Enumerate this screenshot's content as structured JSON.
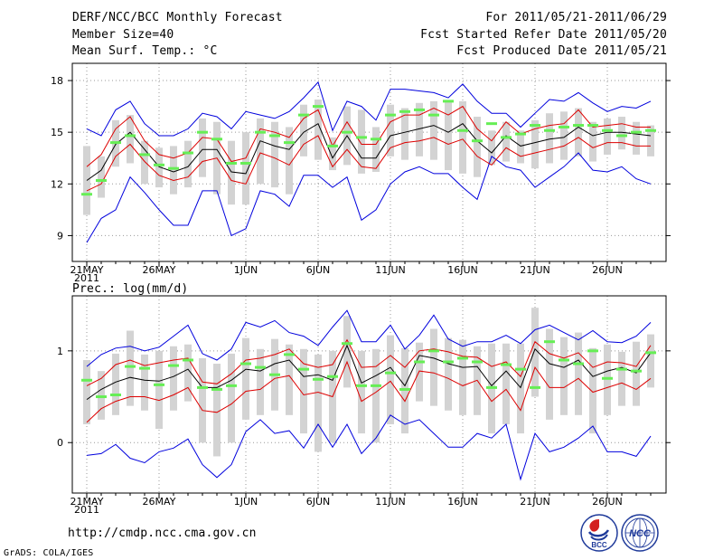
{
  "header": {
    "title_line1": "DERF/NCC/BCC Monthly Forecast",
    "title_line2": "Member Size=40",
    "title_line3": "Mean Surf. Temp.: °C",
    "right_line1": "For 2011/05/21-2011/06/29",
    "right_line2": "Fcst Started Refer Date 2011/05/20",
    "right_line3": "Fcst Produced Date 2011/05/21"
  },
  "footer": {
    "url": "http://cmdp.ncc.cma.gov.cn",
    "grads": "GrADS: COLA/IGES",
    "logo_bcc_text": "BCC",
    "logo_ncc_text": "NCC"
  },
  "colors": {
    "box": "#d3d3d3",
    "median": "#66ee55",
    "mean": "#000000",
    "std": "#dd0000",
    "extreme": "#0000dd",
    "grid": "#999999"
  },
  "chart_data": [
    {
      "type": "line",
      "panel": "temperature",
      "title": "Mean Surf. Temp.: °C",
      "ylim": [
        7.5,
        19
      ],
      "yticks": [
        9,
        12,
        15,
        18
      ],
      "ytick_labels": [
        "9",
        "12",
        "15",
        "18"
      ],
      "xtick_labels": [
        "21MAY\n2011",
        "26MAY",
        "1JUN",
        "6JUN",
        "11JUN",
        "16JUN",
        "21JUN",
        "26JUN"
      ],
      "xtick_days": [
        1,
        6,
        12,
        17,
        22,
        27,
        32,
        37
      ],
      "days": 40,
      "grid": true,
      "series": [
        {
          "name": "mean",
          "values": [
            12.2,
            12.8,
            14.3,
            15.0,
            14.0,
            13.0,
            12.7,
            13.0,
            14.0,
            14.0,
            12.7,
            12.6,
            14.5,
            14.2,
            14.0,
            15.0,
            15.5,
            13.5,
            14.8,
            13.5,
            13.5,
            14.8,
            15.0,
            15.2,
            15.4,
            15.0,
            15.5,
            14.5,
            13.8,
            14.8,
            14.2,
            14.4,
            14.6,
            14.7,
            15.3,
            14.8,
            15.0,
            15.0,
            14.9,
            14.8
          ]
        },
        {
          "name": "mean_plus_std",
          "values": [
            13.0,
            13.7,
            15.2,
            15.9,
            14.5,
            13.7,
            13.5,
            13.8,
            14.7,
            14.6,
            13.3,
            13.5,
            15.2,
            15.0,
            14.7,
            15.8,
            16.3,
            14.2,
            15.6,
            14.3,
            14.3,
            15.6,
            16.0,
            16.0,
            16.4,
            16.0,
            16.5,
            15.2,
            14.5,
            15.6,
            14.9,
            15.2,
            15.4,
            15.5,
            16.3,
            15.3,
            15.4,
            15.5,
            15.3,
            15.3
          ]
        },
        {
          "name": "mean_minus_std",
          "values": [
            11.6,
            12.0,
            13.6,
            14.3,
            13.3,
            12.5,
            12.2,
            12.4,
            13.3,
            13.5,
            12.2,
            12.0,
            13.8,
            13.5,
            13.1,
            14.3,
            14.8,
            13.0,
            14.0,
            13.0,
            12.9,
            14.1,
            14.4,
            14.5,
            14.7,
            14.3,
            14.6,
            13.6,
            13.1,
            14.1,
            13.6,
            13.8,
            14.0,
            14.2,
            14.7,
            14.1,
            14.4,
            14.4,
            14.2,
            14.2
          ]
        },
        {
          "name": "max",
          "values": [
            15.2,
            14.8,
            16.3,
            16.8,
            15.5,
            14.8,
            14.8,
            15.2,
            16.1,
            15.9,
            15.2,
            16.2,
            16.0,
            15.8,
            16.2,
            17.0,
            17.9,
            15.1,
            16.8,
            16.5,
            15.7,
            17.5,
            17.5,
            17.4,
            17.3,
            17.0,
            17.8,
            16.8,
            16.1,
            16.1,
            15.3,
            16.1,
            16.9,
            16.8,
            17.3,
            16.7,
            16.2,
            16.5,
            16.4,
            16.8
          ]
        },
        {
          "name": "min",
          "values": [
            8.6,
            10.0,
            10.5,
            12.4,
            11.5,
            10.5,
            9.6,
            9.6,
            11.6,
            11.6,
            9.0,
            9.4,
            11.6,
            11.4,
            10.7,
            12.5,
            12.5,
            11.8,
            12.4,
            9.9,
            10.5,
            12.0,
            12.7,
            13.0,
            12.6,
            12.6,
            11.8,
            11.1,
            13.6,
            13.0,
            12.8,
            11.8,
            12.4,
            13.0,
            13.8,
            12.8,
            12.7,
            13.0,
            12.3,
            12.0
          ]
        },
        {
          "name": "median",
          "values": [
            11.4,
            12.2,
            14.4,
            14.8,
            13.7,
            13.1,
            12.9,
            13.8,
            15.0,
            14.6,
            13.2,
            13.2,
            15.0,
            14.8,
            14.4,
            16.0,
            16.5,
            14.2,
            15.0,
            14.7,
            14.6,
            16.0,
            16.2,
            16.3,
            16.0,
            16.8,
            15.1,
            14.5,
            15.5,
            14.7,
            14.9,
            15.4,
            15.1,
            15.3,
            15.4,
            15.4,
            15.1,
            14.8,
            15.0,
            15.1
          ]
        },
        {
          "name": "box_low",
          "values": [
            10.2,
            11.2,
            13.0,
            13.2,
            12.0,
            11.8,
            11.4,
            11.8,
            12.4,
            11.4,
            10.8,
            10.8,
            12.0,
            11.8,
            11.4,
            13.6,
            13.4,
            12.8,
            13.1,
            12.6,
            12.7,
            13.6,
            13.4,
            13.6,
            13.4,
            12.8,
            12.6,
            12.4,
            13.1,
            13.3,
            13.2,
            12.9,
            13.2,
            13.4,
            13.6,
            13.3,
            13.7,
            14.0,
            13.7,
            13.6
          ]
        },
        {
          "name": "box_high",
          "values": [
            14.2,
            13.6,
            15.7,
            16.0,
            14.5,
            14.1,
            14.2,
            14.5,
            15.8,
            15.6,
            14.5,
            15.0,
            15.8,
            15.6,
            15.3,
            16.6,
            16.9,
            14.7,
            16.5,
            16.3,
            15.3,
            16.6,
            16.4,
            16.7,
            16.8,
            16.8,
            16.8,
            15.9,
            15.1,
            15.6,
            15.1,
            15.7,
            16.1,
            16.2,
            16.4,
            15.6,
            15.8,
            15.9,
            15.6,
            15.4
          ]
        }
      ]
    },
    {
      "type": "line",
      "panel": "precipitation",
      "title": "Prec.: log(mm/d)",
      "ylim": [
        -0.55,
        1.6
      ],
      "yticks": [
        0,
        1
      ],
      "ytick_labels": [
        "0",
        "1"
      ],
      "xtick_labels": [
        "21MAY\n2011",
        "26MAY",
        "1JUN",
        "6JUN",
        "11JUN",
        "16JUN",
        "21JUN",
        "26JUN"
      ],
      "xtick_days": [
        1,
        6,
        12,
        17,
        22,
        27,
        32,
        37
      ],
      "days": 40,
      "grid": true,
      "series": [
        {
          "name": "mean",
          "values": [
            0.47,
            0.58,
            0.66,
            0.71,
            0.68,
            0.67,
            0.72,
            0.8,
            0.6,
            0.6,
            0.68,
            0.8,
            0.78,
            0.86,
            0.9,
            0.72,
            0.74,
            0.68,
            1.06,
            0.65,
            0.73,
            0.82,
            0.62,
            0.95,
            0.92,
            0.86,
            0.82,
            0.83,
            0.62,
            0.78,
            0.6,
            1.02,
            0.86,
            0.82,
            0.9,
            0.72,
            0.78,
            0.82,
            0.76,
            0.98
          ]
        },
        {
          "name": "mean_plus_std",
          "values": [
            0.62,
            0.7,
            0.85,
            0.9,
            0.84,
            0.87,
            0.9,
            0.92,
            0.66,
            0.64,
            0.75,
            0.9,
            0.92,
            0.96,
            1.02,
            0.86,
            0.82,
            0.85,
            1.12,
            0.82,
            0.83,
            0.95,
            0.82,
            1.0,
            1.02,
            0.99,
            0.94,
            0.93,
            0.83,
            0.88,
            0.72,
            1.1,
            0.97,
            0.92,
            0.98,
            0.82,
            0.88,
            0.87,
            0.83,
            1.06
          ]
        },
        {
          "name": "mean_minus_std",
          "values": [
            0.22,
            0.37,
            0.45,
            0.5,
            0.5,
            0.46,
            0.52,
            0.6,
            0.35,
            0.33,
            0.42,
            0.56,
            0.58,
            0.7,
            0.73,
            0.52,
            0.55,
            0.5,
            0.88,
            0.45,
            0.55,
            0.67,
            0.45,
            0.78,
            0.76,
            0.7,
            0.62,
            0.68,
            0.45,
            0.58,
            0.35,
            0.82,
            0.6,
            0.6,
            0.7,
            0.55,
            0.6,
            0.65,
            0.58,
            0.7
          ]
        },
        {
          "name": "max",
          "values": [
            0.83,
            0.96,
            1.03,
            1.05,
            1.0,
            1.04,
            1.16,
            1.28,
            0.97,
            0.9,
            1.02,
            1.31,
            1.26,
            1.33,
            1.2,
            1.16,
            1.06,
            1.26,
            1.44,
            1.1,
            1.1,
            1.28,
            1.02,
            1.17,
            1.39,
            1.13,
            1.05,
            1.1,
            1.1,
            1.17,
            1.08,
            1.23,
            1.28,
            1.2,
            1.12,
            1.22,
            1.1,
            1.09,
            1.16,
            1.31
          ]
        },
        {
          "name": "min",
          "values": [
            -0.14,
            -0.12,
            -0.02,
            -0.17,
            -0.22,
            -0.1,
            -0.06,
            0.04,
            -0.24,
            -0.38,
            -0.24,
            0.12,
            0.25,
            0.1,
            0.13,
            -0.06,
            0.2,
            -0.05,
            0.2,
            -0.12,
            0.05,
            0.3,
            0.2,
            0.25,
            0.1,
            -0.05,
            -0.05,
            0.1,
            0.05,
            0.2,
            -0.4,
            0.1,
            -0.1,
            -0.05,
            0.05,
            0.18,
            -0.1,
            -0.1,
            -0.15,
            0.07
          ]
        },
        {
          "name": "median",
          "values": [
            0.68,
            0.5,
            0.52,
            0.83,
            0.81,
            0.63,
            0.84,
            0.9,
            0.6,
            0.58,
            0.62,
            0.86,
            0.82,
            0.74,
            0.96,
            0.8,
            0.69,
            0.72,
            1.08,
            0.62,
            0.62,
            0.76,
            0.58,
            0.88,
            1.0,
            0.88,
            0.92,
            0.88,
            0.6,
            0.85,
            0.8,
            0.6,
            1.1,
            0.9,
            0.86,
            1.0,
            0.7,
            0.8,
            0.78,
            0.98
          ]
        },
        {
          "name": "box_low",
          "values": [
            0.2,
            0.25,
            0.3,
            0.4,
            0.35,
            0.15,
            0.35,
            0.45,
            0.0,
            -0.15,
            0.0,
            0.25,
            0.3,
            0.35,
            0.3,
            0.1,
            -0.1,
            0.0,
            0.6,
            0.1,
            0.0,
            0.2,
            0.1,
            0.45,
            0.4,
            0.35,
            0.3,
            0.3,
            0.1,
            0.2,
            0.1,
            0.5,
            0.25,
            0.3,
            0.3,
            0.1,
            0.3,
            0.4,
            0.4,
            0.6
          ]
        },
        {
          "name": "box_high",
          "values": [
            0.9,
            0.78,
            0.97,
            1.22,
            0.96,
            1.0,
            1.05,
            1.07,
            0.92,
            0.86,
            0.97,
            1.14,
            1.02,
            1.13,
            1.07,
            1.02,
            0.96,
            1.0,
            1.38,
            1.0,
            1.02,
            1.17,
            1.03,
            1.09,
            1.24,
            1.14,
            1.12,
            1.05,
            1.08,
            1.08,
            1.08,
            1.47,
            1.24,
            1.15,
            1.2,
            1.03,
            1.07,
            0.99,
            1.1,
            1.18
          ]
        }
      ]
    }
  ]
}
